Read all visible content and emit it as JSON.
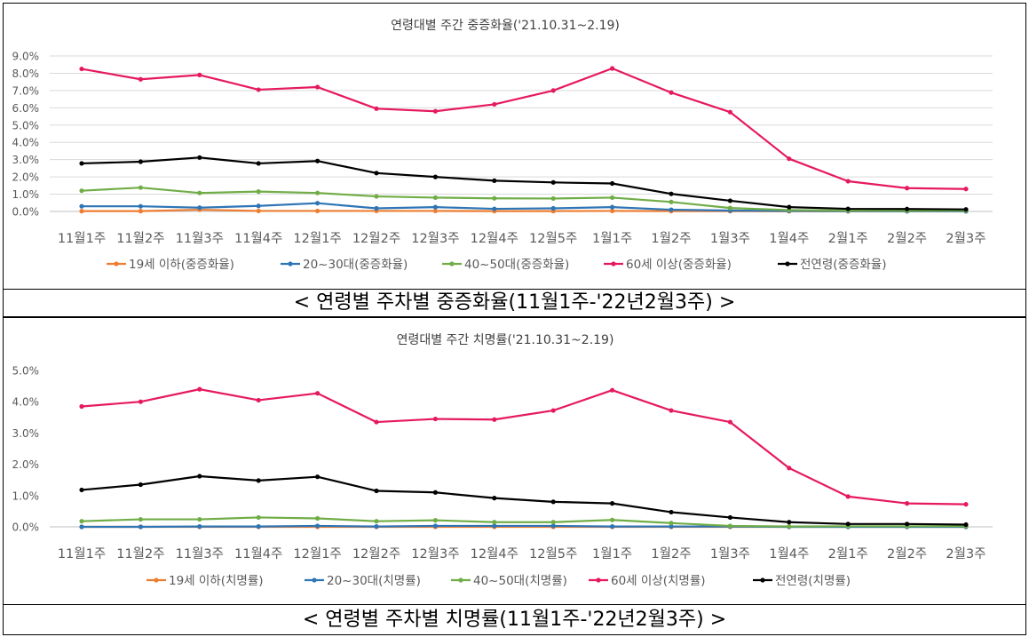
{
  "chart_data": [
    {
      "type": "line",
      "title": "연령대별 주간 중증화율('21.10.31~2.19)",
      "categories": [
        "11월1주",
        "11월2주",
        "11월3주",
        "11월4주",
        "12월1주",
        "12월2주",
        "12월3주",
        "12월4주",
        "12월5주",
        "1월1주",
        "1월2주",
        "1월3주",
        "1월4주",
        "2월1주",
        "2월2주",
        "2월3주"
      ],
      "ylim": [
        0,
        9.0
      ],
      "yticks": [
        "0.0%",
        "1.0%",
        "2.0%",
        "3.0%",
        "4.0%",
        "5.0%",
        "6.0%",
        "7.0%",
        "8.0%",
        "9.0%"
      ],
      "grid": true,
      "legend": "bottom",
      "series": [
        {
          "name": "19세 이하(중증화율)",
          "color": "#ED7D31",
          "values": [
            0.02,
            0.02,
            0.1,
            0.03,
            0.03,
            0.03,
            0.03,
            0.02,
            0.02,
            0.03,
            0.02,
            0.02,
            0.01,
            0.01,
            0.01,
            0.01
          ]
        },
        {
          "name": "20~30대(중증화율)",
          "color": "#2E75B6",
          "values": [
            0.3,
            0.3,
            0.22,
            0.32,
            0.48,
            0.18,
            0.25,
            0.15,
            0.18,
            0.25,
            0.1,
            0.05,
            0.03,
            0.02,
            0.01,
            0.01
          ]
        },
        {
          "name": "40~50대(중증화율)",
          "color": "#70AD47",
          "values": [
            1.2,
            1.38,
            1.07,
            1.15,
            1.07,
            0.87,
            0.8,
            0.76,
            0.75,
            0.8,
            0.55,
            0.2,
            0.08,
            0.05,
            0.04,
            0.05
          ]
        },
        {
          "name": "60세 이상(중증화율)",
          "color": "#E6195F",
          "values": [
            8.25,
            7.65,
            7.9,
            7.05,
            7.2,
            5.95,
            5.8,
            6.2,
            7.0,
            8.28,
            6.88,
            5.75,
            3.05,
            1.75,
            1.35,
            1.3
          ]
        },
        {
          "name": "전연령(중증화율)",
          "color": "#000000",
          "values": [
            2.78,
            2.88,
            3.12,
            2.78,
            2.92,
            2.22,
            2.0,
            1.78,
            1.68,
            1.62,
            1.02,
            0.62,
            0.25,
            0.15,
            0.14,
            0.12
          ]
        }
      ]
    },
    {
      "type": "line",
      "title": "연령대별 주간 치명률('21.10.31~2.19)",
      "categories": [
        "11월1주",
        "11월2주",
        "11월3주",
        "11월4주",
        "12월1주",
        "12월2주",
        "12월3주",
        "12월4주",
        "12월5주",
        "1월1주",
        "1월2주",
        "1월3주",
        "1월4주",
        "2월1주",
        "2월2주",
        "2월3주"
      ],
      "ylim": [
        0,
        5.0
      ],
      "yticks": [
        "0.0%",
        "1.0%",
        "2.0%",
        "3.0%",
        "4.0%",
        "5.0%"
      ],
      "grid": false,
      "legend": "bottom",
      "series": [
        {
          "name": "19세 이하(치명률)",
          "color": "#ED7D31",
          "values": [
            0.0,
            0.0,
            0.0,
            0.0,
            0.0,
            0.0,
            0.0,
            0.0,
            0.0,
            0.0,
            0.0,
            0.0,
            0.0,
            0.0,
            0.0,
            0.0
          ]
        },
        {
          "name": "20~30대(치명률)",
          "color": "#2E75B6",
          "values": [
            0.0,
            0.0,
            0.01,
            0.01,
            0.03,
            0.01,
            0.03,
            0.03,
            0.03,
            0.01,
            0.01,
            0.01,
            0.0,
            0.0,
            0.0,
            0.0
          ]
        },
        {
          "name": "40~50대(치명률)",
          "color": "#70AD47",
          "values": [
            0.18,
            0.24,
            0.24,
            0.3,
            0.27,
            0.18,
            0.21,
            0.15,
            0.15,
            0.22,
            0.12,
            0.03,
            0.01,
            0.02,
            0.02,
            0.02
          ]
        },
        {
          "name": "60세 이상(치명률)",
          "color": "#E6195F",
          "values": [
            3.85,
            4.0,
            4.4,
            4.05,
            4.27,
            3.35,
            3.45,
            3.43,
            3.72,
            4.37,
            3.72,
            3.35,
            1.88,
            0.97,
            0.75,
            0.72
          ]
        },
        {
          "name": "전연령(치명률)",
          "color": "#000000",
          "values": [
            1.18,
            1.35,
            1.62,
            1.48,
            1.6,
            1.15,
            1.1,
            0.92,
            0.8,
            0.75,
            0.47,
            0.3,
            0.15,
            0.09,
            0.09,
            0.07
          ]
        }
      ]
    }
  ],
  "captions": [
    "< 연령별 주차별 중증화율(11월1주-'22년2월3주) >",
    "< 연령별 주차별 치명률(11월1주-'22년2월3주) >"
  ]
}
